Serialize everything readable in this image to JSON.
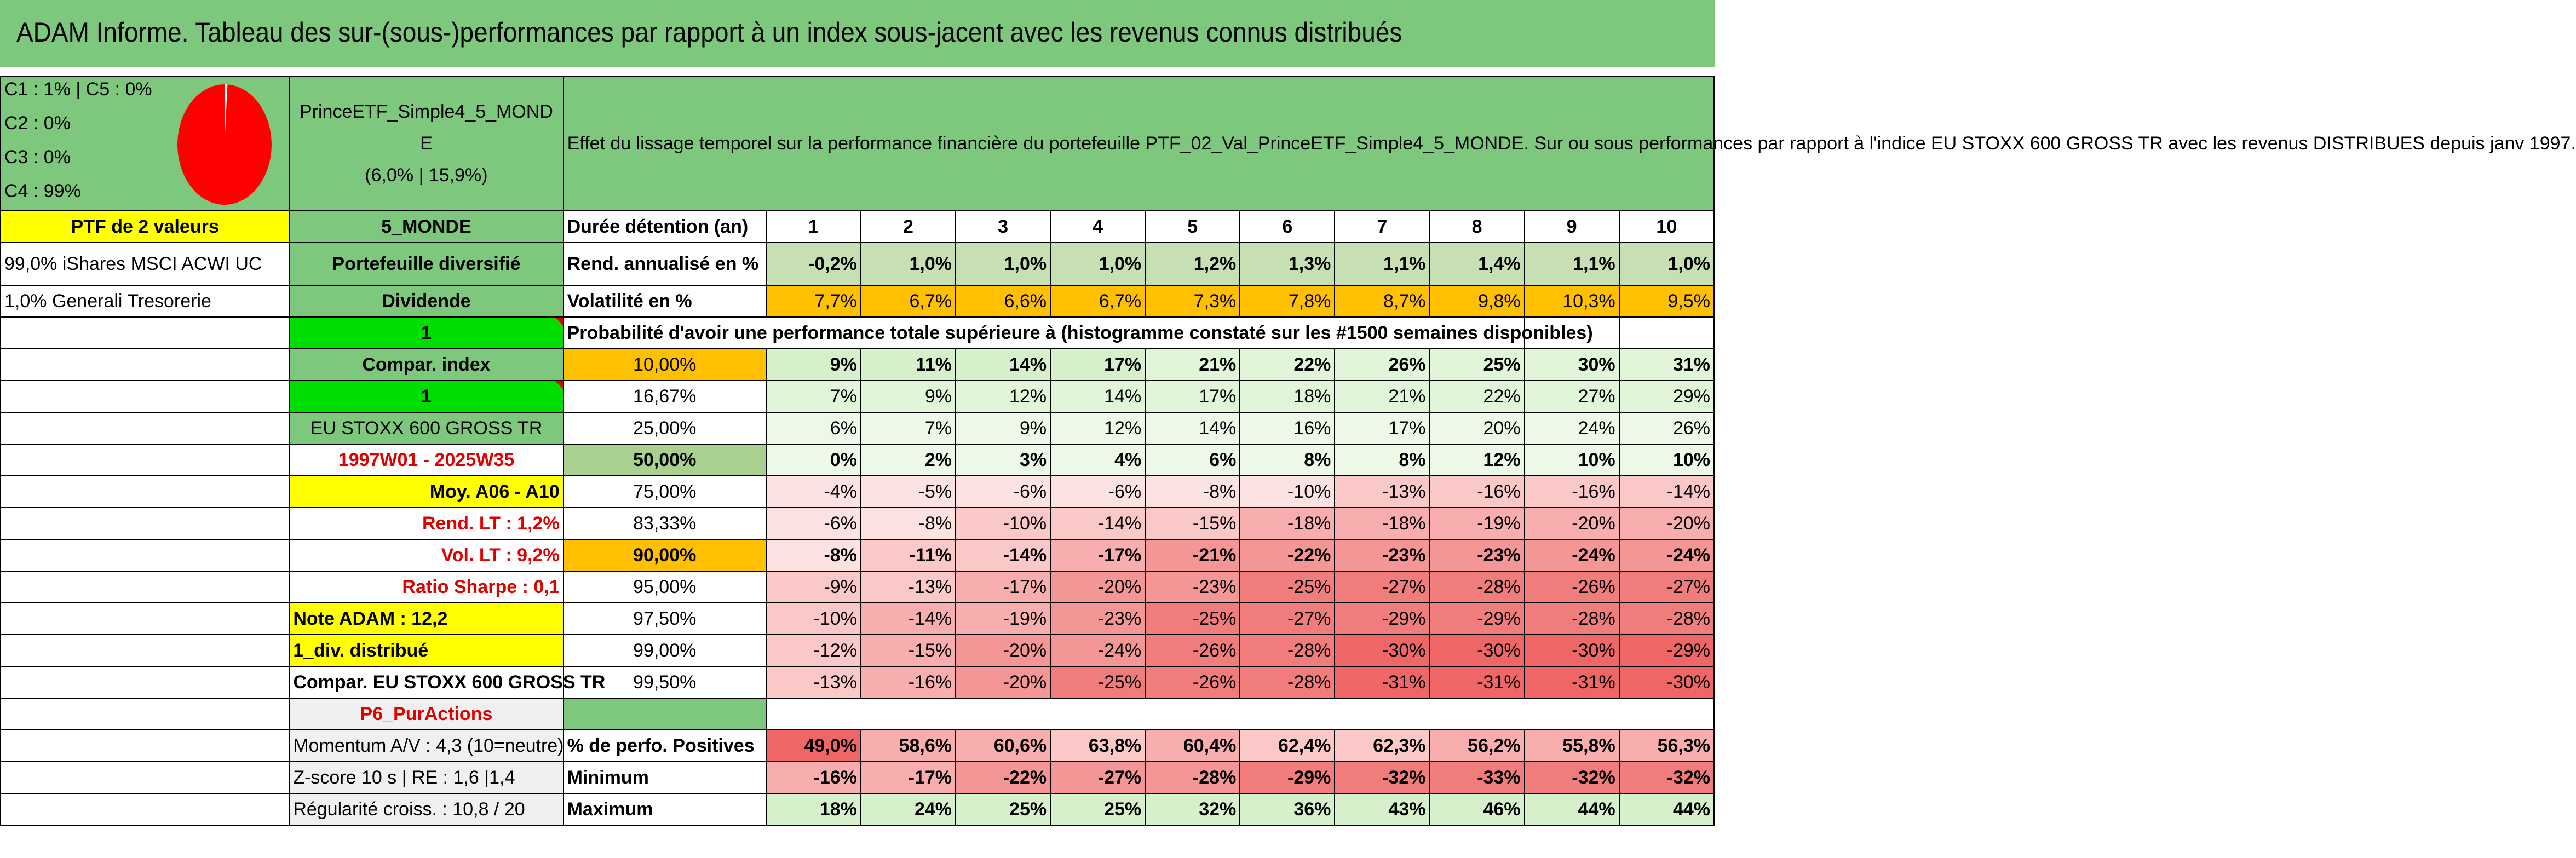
{
  "title": "ADAM Informe. Tableau des sur-(sous-)performances par rapport à un index sous-jacent avec les revenus connus distribués",
  "legend": [
    "C1 : 1% | C5 : 0%",
    "C2 : 0%",
    "C3 : 0%",
    "C4 : 99%"
  ],
  "pie": {
    "c4_fraction": 0.99,
    "color_main": "#ff0000"
  },
  "portfolio": {
    "name_line1": "PrinceETF_Simple4_5_MOND",
    "name_line2": "E",
    "stats": "(6,0% | 15,9%)"
  },
  "description": "Effet du lissage temporel sur la performance financière du portefeuille PTF_02_Val_PrinceETF_Simple4_5_MONDE. Sur ou sous performances par rapport à l'indice EU STOXX 600 GROSS TR avec les revenus DISTRIBUES depuis janv 1997.",
  "left": {
    "ptf": "PTF de 2 valeurs",
    "holding1": "99,0% iShares MSCI ACWI UC",
    "holding2": "1,0% Generali Tresorerie",
    "momentum": "Momentum A/V : 4,3 (10=neutre)",
    "zscore": "Z-score 10 s | RE : 1,6 |1,4",
    "regularite": "Régularité croiss. : 10,8 / 20"
  },
  "mid": {
    "code": "5_MONDE",
    "type": "Portefeuille diversifié",
    "dividende": "Dividende",
    "one_a": "1",
    "compar": "Compar. index",
    "one_b": "1",
    "index": "EU STOXX 600 GROSS TR",
    "period": "1997W01 - 2025W35",
    "moy": "Moy. A06 - A10",
    "rend_lt": "Rend. LT : 1,2%",
    "vol_lt": "Vol. LT : 9,2%",
    "sharpe": "Ratio Sharpe : 0,1",
    "note": "Note ADAM : 12,2",
    "div": "1_div. distribué",
    "compar_full": "Compar. EU STOXX 600 GROSS TR",
    "pur": "P6_PurActions"
  },
  "labels": {
    "duree": "Durée détention (an)",
    "rend": "Rend. annualisé en %",
    "vol": "Volatilité en %",
    "proba": "Probabilité d'avoir une performance totale supérieure à (histogramme constaté sur les #1500 semaines disponibles)",
    "positives": "% de perfo. Positives",
    "minimum": "Minimum",
    "maximum": "Maximum"
  },
  "years": [
    "1",
    "2",
    "3",
    "4",
    "5",
    "6",
    "7",
    "8",
    "9",
    "10"
  ],
  "rend": [
    "-0,2%",
    "1,0%",
    "1,0%",
    "1,0%",
    "1,2%",
    "1,3%",
    "1,1%",
    "1,4%",
    "1,1%",
    "1,0%"
  ],
  "vol": [
    "7,7%",
    "6,7%",
    "6,6%",
    "6,7%",
    "7,3%",
    "7,8%",
    "8,7%",
    "9,8%",
    "10,3%",
    "9,5%"
  ],
  "thresholds": [
    "10,00%",
    "16,67%",
    "25,00%",
    "50,00%",
    "75,00%",
    "83,33%",
    "90,00%",
    "95,00%",
    "97,50%",
    "99,00%",
    "99,50%"
  ],
  "proba_rows": [
    [
      "9%",
      "11%",
      "14%",
      "17%",
      "21%",
      "22%",
      "26%",
      "25%",
      "30%",
      "31%"
    ],
    [
      "7%",
      "9%",
      "12%",
      "14%",
      "17%",
      "18%",
      "21%",
      "22%",
      "27%",
      "29%"
    ],
    [
      "6%",
      "7%",
      "9%",
      "12%",
      "14%",
      "16%",
      "17%",
      "20%",
      "24%",
      "26%"
    ],
    [
      "0%",
      "2%",
      "3%",
      "4%",
      "6%",
      "8%",
      "8%",
      "12%",
      "10%",
      "10%"
    ],
    [
      "-4%",
      "-5%",
      "-6%",
      "-6%",
      "-8%",
      "-10%",
      "-13%",
      "-16%",
      "-16%",
      "-14%"
    ],
    [
      "-6%",
      "-8%",
      "-10%",
      "-14%",
      "-15%",
      "-18%",
      "-18%",
      "-19%",
      "-20%",
      "-20%"
    ],
    [
      "-8%",
      "-11%",
      "-14%",
      "-17%",
      "-21%",
      "-22%",
      "-23%",
      "-23%",
      "-24%",
      "-24%"
    ],
    [
      "-9%",
      "-13%",
      "-17%",
      "-20%",
      "-23%",
      "-25%",
      "-27%",
      "-28%",
      "-26%",
      "-27%"
    ],
    [
      "-10%",
      "-14%",
      "-19%",
      "-23%",
      "-25%",
      "-27%",
      "-29%",
      "-29%",
      "-28%",
      "-28%"
    ],
    [
      "-12%",
      "-15%",
      "-20%",
      "-24%",
      "-26%",
      "-28%",
      "-30%",
      "-30%",
      "-30%",
      "-29%"
    ],
    [
      "-13%",
      "-16%",
      "-20%",
      "-25%",
      "-26%",
      "-28%",
      "-31%",
      "-31%",
      "-31%",
      "-30%"
    ]
  ],
  "positives": [
    "49,0%",
    "58,6%",
    "60,6%",
    "63,8%",
    "60,4%",
    "62,4%",
    "62,3%",
    "56,2%",
    "55,8%",
    "56,3%"
  ],
  "minimum": [
    "-16%",
    "-17%",
    "-22%",
    "-27%",
    "-28%",
    "-29%",
    "-32%",
    "-33%",
    "-32%",
    "-32%"
  ],
  "maximum": [
    "18%",
    "24%",
    "25%",
    "25%",
    "32%",
    "36%",
    "43%",
    "46%",
    "44%",
    "44%"
  ]
}
